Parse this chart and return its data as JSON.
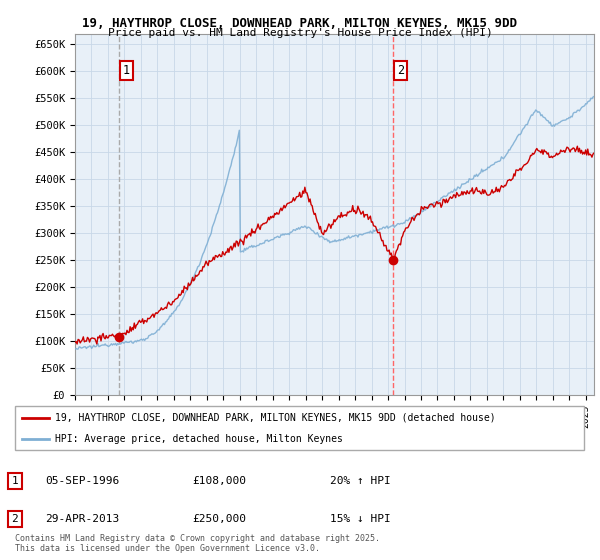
{
  "title_line1": "19, HAYTHROP CLOSE, DOWNHEAD PARK, MILTON KEYNES, MK15 9DD",
  "title_line2": "Price paid vs. HM Land Registry's House Price Index (HPI)",
  "ylabel_ticks": [
    "£0",
    "£50K",
    "£100K",
    "£150K",
    "£200K",
    "£250K",
    "£300K",
    "£350K",
    "£400K",
    "£450K",
    "£500K",
    "£550K",
    "£600K",
    "£650K"
  ],
  "ytick_values": [
    0,
    50000,
    100000,
    150000,
    200000,
    250000,
    300000,
    350000,
    400000,
    450000,
    500000,
    550000,
    600000,
    650000
  ],
  "ylim": [
    0,
    670000
  ],
  "xlim_start": 1994.0,
  "xlim_end": 2025.5,
  "sale1_x": 1996.68,
  "sale1_y": 108000,
  "sale1_label": "1",
  "sale2_x": 2013.33,
  "sale2_y": 250000,
  "sale2_label": "2",
  "red_line_color": "#cc0000",
  "blue_line_color": "#7fafd4",
  "marker_color": "#cc0000",
  "sale1_vline_color": "#aaaaaa",
  "sale2_vline_color": "#ff6666",
  "grid_color": "#c8d8e8",
  "bg_color": "#e8f0f8",
  "legend_label_red": "19, HAYTHROP CLOSE, DOWNHEAD PARK, MILTON KEYNES, MK15 9DD (detached house)",
  "legend_label_blue": "HPI: Average price, detached house, Milton Keynes",
  "note1_num": "1",
  "note1_date": "05-SEP-1996",
  "note1_price": "£108,000",
  "note1_hpi": "20% ↑ HPI",
  "note2_num": "2",
  "note2_date": "29-APR-2013",
  "note2_price": "£250,000",
  "note2_hpi": "15% ↓ HPI",
  "footer": "Contains HM Land Registry data © Crown copyright and database right 2025.\nThis data is licensed under the Open Government Licence v3.0."
}
